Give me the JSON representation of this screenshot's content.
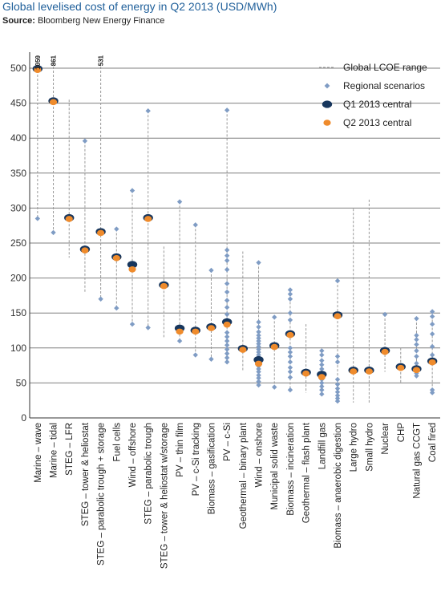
{
  "chart_data": {
    "type": "scatter",
    "title": "Global levelised cost of energy in Q2 2013 (USD/MWh)",
    "source_label": "Source:",
    "source_text": "Bloomberg New Energy Finance",
    "ylim": [
      0,
      500
    ],
    "yticks": [
      0,
      50,
      100,
      150,
      200,
      250,
      300,
      350,
      400,
      450,
      500
    ],
    "grid": true,
    "legend_position": "top-right",
    "legend": [
      {
        "key": "range",
        "label": "Global LCOE range"
      },
      {
        "key": "regional",
        "label": "Regional scenarios"
      },
      {
        "key": "q1",
        "label": "Q1 2013 central"
      },
      {
        "key": "q2",
        "label": "Q2 2013 central"
      }
    ],
    "colors": {
      "range": "#999999",
      "regional": "#7f9cc4",
      "q1": "#17365d",
      "q2": "#ef8b2c",
      "grid": "#7f7f7f"
    },
    "categories": [
      {
        "name": "Marine – wave",
        "min": 285,
        "max": 1059,
        "cap_label": "1059",
        "q1": 498,
        "q2": 498,
        "regional": [
          285
        ]
      },
      {
        "name": "Marine – tidal",
        "min": 265,
        "max": 861,
        "cap_label": "861",
        "q1": 452,
        "q2": 452,
        "regional": [
          265
        ]
      },
      {
        "name": "STEG – LFR",
        "min": 229,
        "max": 455,
        "q1": 285,
        "q2": 285,
        "regional": []
      },
      {
        "name": "STEG – tower & heliostat",
        "min": 180,
        "max": 396,
        "q1": 240,
        "q2": 240,
        "regional": [
          396
        ]
      },
      {
        "name": "STEG – parabolic trough + storage",
        "min": 170,
        "max": 531,
        "cap_label": "531",
        "q1": 265,
        "q2": 265,
        "regional": [
          170
        ]
      },
      {
        "name": "Fuel cells",
        "min": 157,
        "max": 270,
        "q1": 229,
        "q2": 229,
        "regional": [
          157,
          270
        ]
      },
      {
        "name": "Wind – offshore",
        "min": 134,
        "max": 325,
        "q1": 218,
        "q2": 213,
        "regional": [
          134,
          325
        ]
      },
      {
        "name": "STEG – parabolic trough",
        "min": 129,
        "max": 439,
        "q1": 285,
        "q2": 285,
        "regional": [
          129,
          439
        ]
      },
      {
        "name": "STEG – tower & heliostat w/storage",
        "min": 115,
        "max": 245,
        "q1": 189,
        "q2": 189,
        "regional": []
      },
      {
        "name": "PV – thin film",
        "min": 110,
        "max": 309,
        "q1": 127,
        "q2": 124,
        "regional": [
          110,
          309
        ]
      },
      {
        "name": "PV – c-Si tracking",
        "min": 90,
        "max": 276,
        "q1": 124,
        "q2": 124,
        "regional": [
          90,
          276
        ]
      },
      {
        "name": "Biomass – gasification",
        "min": 84,
        "max": 211,
        "q1": 129,
        "q2": 129,
        "regional": [
          84,
          211
        ]
      },
      {
        "name": "PV – c-Si",
        "min": 80,
        "max": 440,
        "q1": 136,
        "q2": 134,
        "regional": [
          80,
          86,
          92,
          98,
          104,
          110,
          116,
          122,
          140,
          148,
          158,
          168,
          180,
          192,
          212,
          225,
          232,
          240,
          440
        ]
      },
      {
        "name": "Geothermal – binary plant",
        "min": 67,
        "max": 238,
        "q1": 98,
        "q2": 98,
        "regional": []
      },
      {
        "name": "Wind – onshore",
        "min": 47,
        "max": 222,
        "q1": 82,
        "q2": 78,
        "regional": [
          47,
          52,
          57,
          61,
          66,
          70,
          74,
          78,
          86,
          90,
          94,
          98,
          102,
          106,
          110,
          114,
          118,
          123,
          130,
          137,
          222
        ]
      },
      {
        "name": "Municipal solid waste",
        "min": 44,
        "max": 144,
        "q1": 102,
        "q2": 102,
        "regional": [
          44,
          144
        ]
      },
      {
        "name": "Biomass – incineration",
        "min": 40,
        "max": 183,
        "q1": 119,
        "q2": 119,
        "regional": [
          40,
          58,
          66,
          72,
          80,
          88,
          94,
          100,
          140,
          150,
          170,
          177,
          183
        ]
      },
      {
        "name": "Geothermal – flash plant",
        "min": 36,
        "max": 134,
        "q1": 64,
        "q2": 64,
        "regional": []
      },
      {
        "name": "Landfill gas",
        "min": 34,
        "max": 96,
        "q1": 61,
        "q2": 59,
        "regional": [
          34,
          40,
          45,
          50,
          55,
          70,
          76,
          82,
          90,
          96
        ]
      },
      {
        "name": "Biomass – anaerobic digestion",
        "min": 24,
        "max": 196,
        "q1": 146,
        "q2": 146,
        "regional": [
          24,
          28,
          32,
          37,
          42,
          48,
          55,
          80,
          88,
          196
        ]
      },
      {
        "name": "Large hydro",
        "min": 22,
        "max": 299,
        "q1": 67,
        "q2": 67,
        "regional": []
      },
      {
        "name": "Small hydro",
        "min": 20,
        "max": 312,
        "q1": 67,
        "q2": 67,
        "regional": []
      },
      {
        "name": "Nuclear",
        "min": 66,
        "max": 148,
        "q1": 95,
        "q2": 95,
        "regional": [
          148
        ]
      },
      {
        "name": "CHP",
        "min": 50,
        "max": 100,
        "q1": 72,
        "q2": 72,
        "regional": []
      },
      {
        "name": "Natural gas CCGT",
        "min": 60,
        "max": 142,
        "q1": 69,
        "q2": 69,
        "regional": [
          60,
          64,
          78,
          88,
          96,
          105,
          112,
          118,
          142
        ]
      },
      {
        "name": "Coal fired",
        "min": 36,
        "max": 152,
        "q1": 80,
        "q2": 80,
        "regional": [
          36,
          40,
          78,
          90,
          102,
          120,
          134,
          145,
          152
        ]
      }
    ]
  }
}
